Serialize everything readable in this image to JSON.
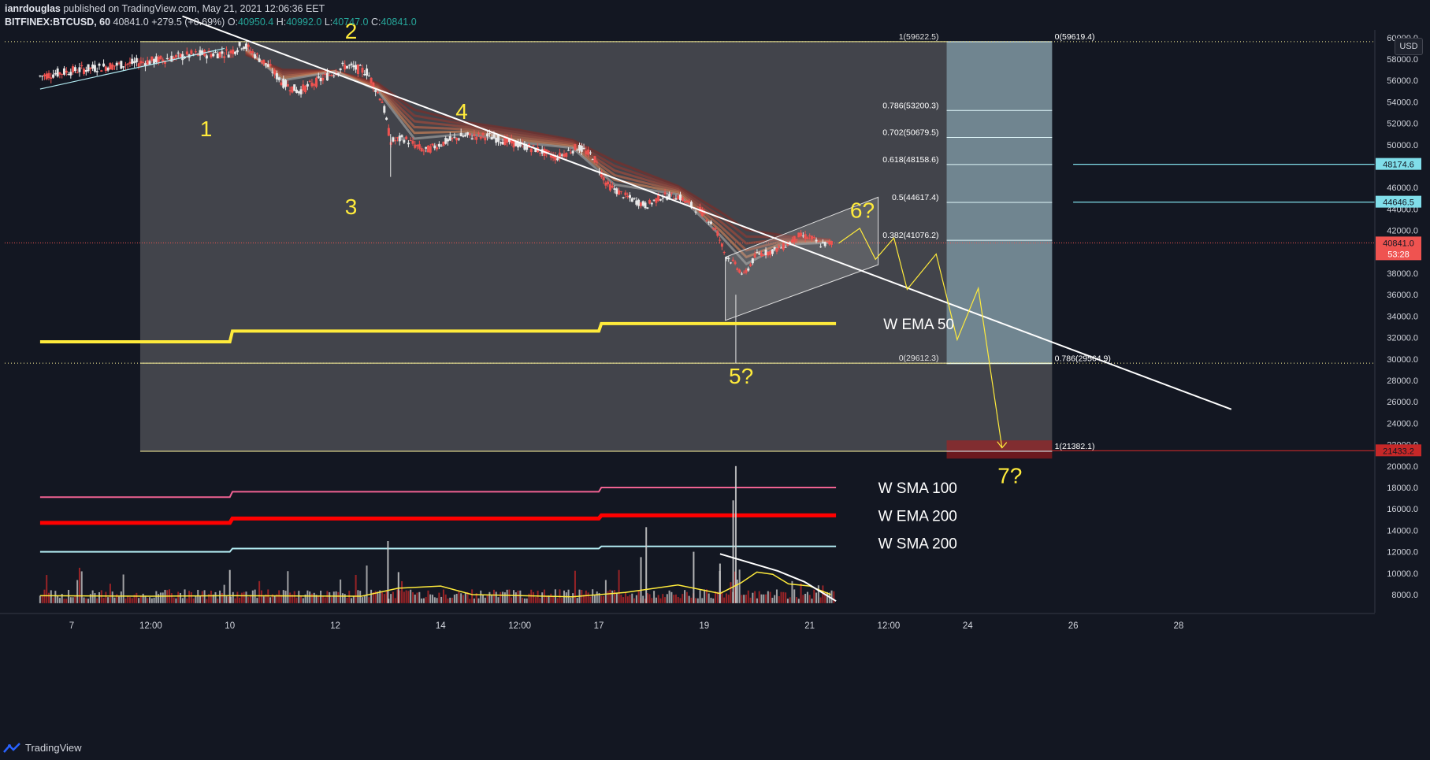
{
  "header": {
    "author": "ianrdouglas",
    "published_text": "published on TradingView.com, May 21, 2021 12:06:36 EET",
    "symbol": "BITFINEX:BTCUSD, 60",
    "last": "40841.0",
    "change": "+279.5 (+0.69%)",
    "o_label": "O:",
    "o_val": "40950.4",
    "h_label": "H:",
    "h_val": "40992.0",
    "l_label": "L:",
    "l_val": "40747.0",
    "c_label": "C:",
    "c_val": "40841.0"
  },
  "footer": {
    "brand": "TradingView"
  },
  "currency_button": "USD",
  "colors": {
    "background": "#131722",
    "candle_up": "#e8e8e8",
    "candle_down": "#ef5350",
    "ema": "#ffeb3b",
    "sma100": "#f06292",
    "ema200": "#ff0000",
    "sma200": "#b2ebf2",
    "fib_box": "#78909c",
    "target_box": "#b71c1c"
  },
  "chart_data": {
    "type": "candlestick",
    "title": "",
    "y_axis": {
      "ylim": [
        6500,
        61000
      ],
      "ticks": [
        60000,
        58000,
        56000,
        54000,
        52000,
        50000,
        48000,
        46000,
        44000,
        42000,
        40000,
        38000,
        36000,
        34000,
        32000,
        30000,
        28000,
        26000,
        24000,
        22000,
        20000,
        18000,
        16000,
        14000,
        12000,
        10000,
        8000
      ],
      "tick_labels": [
        "60000.0",
        "58000.0",
        "56000.0",
        "54000.0",
        "52000.0",
        "50000.0",
        "48000.0",
        "46000.0",
        "44000.0",
        "42000.0",
        "40000.0",
        "38000.0",
        "36000.0",
        "34000.0",
        "32000.0",
        "30000.0",
        "28000.0",
        "26000.0",
        "24000.0",
        "22000.0",
        "20000.0",
        "18000.0",
        "16000.0",
        "14000.0",
        "12000.0",
        "10000.0",
        "8000.0"
      ],
      "tag_values": [
        {
          "label": "48174.6",
          "value": 48174.6,
          "color": "#80deea"
        },
        {
          "label": "44646.5",
          "value": 44646.5,
          "color": "#80deea"
        },
        {
          "label": "40841.0",
          "sublabel": "53:28",
          "value": 40841.0,
          "color": "#ef5350"
        },
        {
          "label": "21433.2",
          "value": 21433.2,
          "color": "#c62828"
        }
      ]
    },
    "x_axis": {
      "xlim": [
        6.4,
        28.8
      ],
      "tick_labels": [
        {
          "label": "7",
          "x": 7.0
        },
        {
          "label": "12:00",
          "x": 8.5
        },
        {
          "label": "10",
          "x": 10.0
        },
        {
          "label": "12",
          "x": 12.0
        },
        {
          "label": "14",
          "x": 14.0
        },
        {
          "label": "12:00",
          "x": 15.5
        },
        {
          "label": "17",
          "x": 17.0
        },
        {
          "label": "19",
          "x": 19.0
        },
        {
          "label": "21",
          "x": 21.0
        },
        {
          "label": "12:00",
          "x": 22.5
        },
        {
          "label": "24",
          "x": 24.0
        },
        {
          "label": "26",
          "x": 26.0
        },
        {
          "label": "28",
          "x": 28.0
        }
      ]
    },
    "price_path": [
      [
        6.4,
        56400
      ],
      [
        7.0,
        56900
      ],
      [
        7.8,
        57400
      ],
      [
        8.5,
        57800
      ],
      [
        9.3,
        58400
      ],
      [
        10.0,
        58600
      ],
      [
        10.25,
        59400
      ],
      [
        10.7,
        57500
      ],
      [
        11.0,
        55800
      ],
      [
        11.3,
        55000
      ],
      [
        11.7,
        56000
      ],
      [
        12.2,
        57400
      ],
      [
        12.6,
        56800
      ],
      [
        12.9,
        54000
      ],
      [
        13.05,
        50300
      ],
      [
        13.3,
        50600
      ],
      [
        13.7,
        49400
      ],
      [
        14.0,
        50100
      ],
      [
        14.4,
        50800
      ],
      [
        14.9,
        50800
      ],
      [
        15.4,
        50100
      ],
      [
        15.8,
        49600
      ],
      [
        16.2,
        48800
      ],
      [
        16.6,
        49800
      ],
      [
        16.9,
        48900
      ],
      [
        17.15,
        46300
      ],
      [
        17.5,
        45200
      ],
      [
        17.9,
        44300
      ],
      [
        18.2,
        45200
      ],
      [
        18.5,
        45200
      ],
      [
        18.8,
        44200
      ],
      [
        19.0,
        43600
      ],
      [
        19.25,
        41800
      ],
      [
        19.4,
        39700
      ],
      [
        19.55,
        39000
      ],
      [
        19.75,
        37800
      ],
      [
        20.0,
        39800
      ],
      [
        20.25,
        40000
      ],
      [
        20.5,
        40500
      ],
      [
        20.8,
        41500
      ],
      [
        21.0,
        41400
      ],
      [
        21.2,
        40700
      ],
      [
        21.45,
        40841
      ]
    ],
    "ema_ribbon_top": [
      [
        10.3,
        58300
      ],
      [
        11.0,
        57200
      ],
      [
        12.0,
        56900
      ],
      [
        12.8,
        55900
      ],
      [
        13.5,
        53800
      ],
      [
        14.5,
        52300
      ],
      [
        15.5,
        51600
      ],
      [
        16.5,
        50600
      ],
      [
        17.3,
        48900
      ],
      [
        18.5,
        46300
      ],
      [
        19.3,
        44200
      ],
      [
        19.8,
        42700
      ],
      [
        20.5,
        41700
      ],
      [
        21.4,
        41200
      ]
    ],
    "volume": {
      "baseline_price": 7600,
      "spikes": [
        [
          10.0,
          10300
        ],
        [
          13.0,
          13000
        ],
        [
          17.9,
          14300
        ],
        [
          19.6,
          20000
        ],
        [
          19.55,
          16800
        ],
        [
          18.8,
          12000
        ],
        [
          17.8,
          11500
        ],
        [
          13.2,
          10100
        ],
        [
          19.3,
          10900
        ]
      ]
    },
    "volume_ma": [
      [
        6.4,
        7900
      ],
      [
        8.5,
        7850
      ],
      [
        10.0,
        7900
      ],
      [
        12.5,
        7850
      ],
      [
        13.2,
        8600
      ],
      [
        14.0,
        8800
      ],
      [
        14.6,
        8000
      ],
      [
        16.5,
        7800
      ],
      [
        17.5,
        8200
      ],
      [
        18.5,
        8900
      ],
      [
        19.3,
        8100
      ],
      [
        19.7,
        9100
      ],
      [
        20.0,
        10100
      ],
      [
        20.3,
        9900
      ],
      [
        20.6,
        9000
      ],
      [
        21.0,
        8800
      ],
      [
        21.4,
        8000
      ]
    ],
    "averages": [
      {
        "name": "W EMA 50",
        "color": "#ffeb3b",
        "width": 4,
        "steps": [
          [
            6.4,
            31600
          ],
          [
            10.0,
            31600
          ],
          [
            10.05,
            32600
          ],
          [
            17.0,
            32600
          ],
          [
            17.05,
            33300
          ],
          [
            21.5,
            33300
          ]
        ]
      },
      {
        "name": "W SMA 100",
        "color": "#f06292",
        "width": 2,
        "steps": [
          [
            6.4,
            17100
          ],
          [
            10.0,
            17100
          ],
          [
            10.05,
            17600
          ],
          [
            17.0,
            17600
          ],
          [
            17.05,
            18000
          ],
          [
            21.5,
            18000
          ]
        ]
      },
      {
        "name": "W EMA 200",
        "color": "#ff0000",
        "width": 5,
        "steps": [
          [
            6.4,
            14700
          ],
          [
            10.0,
            14700
          ],
          [
            10.05,
            15100
          ],
          [
            17.0,
            15100
          ],
          [
            17.05,
            15400
          ],
          [
            21.5,
            15400
          ]
        ]
      },
      {
        "name": "W SMA 200",
        "color": "#b2ebf2",
        "width": 2,
        "steps": [
          [
            6.4,
            12000
          ],
          [
            10.0,
            12000
          ],
          [
            10.05,
            12300
          ],
          [
            17.0,
            12300
          ],
          [
            17.05,
            12500
          ],
          [
            21.5,
            12500
          ]
        ]
      }
    ],
    "fib_left": {
      "x_range": [
        8.3,
        25.6
      ],
      "levels": [
        {
          "label": "1(59622.5)",
          "value": 59622.5
        },
        {
          "label": "0(29612.3)",
          "value": 29612.3
        },
        {
          "label": "",
          "value": 21382.1
        }
      ]
    },
    "fib_right": {
      "x_range": [
        23.6,
        25.6
      ],
      "levels": [
        {
          "label": "0(59619.4)",
          "value": 59619.4
        },
        {
          "label": "0.786(53200.3)",
          "value": 53200.3
        },
        {
          "label": "0.702(50679.5)",
          "value": 50679.5
        },
        {
          "label": "0.618(48158.6)",
          "value": 48158.6
        },
        {
          "label": "0.5(44617.4)",
          "value": 44617.4
        },
        {
          "label": "0.382(41076.2)",
          "value": 41076.2
        },
        {
          "label": "0.786(29564.9)",
          "value": 29564.9
        },
        {
          "label": "1(21382.1)",
          "value": 21382.1
        }
      ]
    },
    "horizontal_lines": [
      {
        "value": 48174.6,
        "x_from": 26.0,
        "color": "#80deea"
      },
      {
        "value": 44646.5,
        "x_from": 26.0,
        "color": "#80deea"
      },
      {
        "value": 21433.2,
        "x_from": 25.6,
        "color": "#c62828"
      }
    ],
    "trendlines": [
      {
        "points": [
          [
            6.4,
            55200
          ],
          [
            9.9,
            59000
          ]
        ],
        "color": "#b2ebf2",
        "width": 1.2
      },
      {
        "points": [
          [
            9.1,
            62000
          ],
          [
            29.0,
            25300
          ]
        ],
        "color": "#ffffff",
        "width": 2
      },
      {
        "points": [
          [
            19.3,
            11800
          ],
          [
            20.4,
            10200
          ],
          [
            20.9,
            9200
          ],
          [
            21.5,
            7400
          ]
        ],
        "color": "#ffffff",
        "width": 2
      }
    ],
    "channel": {
      "upper": [
        [
          19.4,
          39500
        ],
        [
          22.3,
          45100
        ]
      ],
      "lower": [
        [
          19.4,
          33600
        ],
        [
          22.3,
          38800
        ]
      ]
    },
    "projection": [
      [
        21.55,
        40800
      ],
      [
        21.95,
        42200
      ],
      [
        22.25,
        39300
      ],
      [
        22.6,
        41300
      ],
      [
        22.85,
        36500
      ],
      [
        23.4,
        39800
      ],
      [
        23.8,
        31800
      ],
      [
        24.2,
        36600
      ],
      [
        24.65,
        21700
      ]
    ],
    "wave_labels": [
      {
        "label": "1",
        "x": 9.55,
        "y": 50800
      },
      {
        "label": "2",
        "x": 12.3,
        "y": 59900
      },
      {
        "label": "3",
        "x": 12.3,
        "y": 43500
      },
      {
        "label": "4",
        "x": 14.4,
        "y": 52400
      },
      {
        "label": "5?",
        "x": 19.7,
        "y": 27700
      },
      {
        "label": "6?",
        "x": 22.0,
        "y": 43200
      },
      {
        "label": "7?",
        "x": 24.8,
        "y": 18400
      }
    ],
    "average_labels": [
      {
        "label": "W EMA 50",
        "x": 22.4,
        "y": 33300
      },
      {
        "label": "W SMA 100",
        "x": 22.3,
        "y": 18000
      },
      {
        "label": "W EMA 200",
        "x": 22.3,
        "y": 15400
      },
      {
        "label": "W SMA 200",
        "x": 22.3,
        "y": 12800
      }
    ]
  }
}
